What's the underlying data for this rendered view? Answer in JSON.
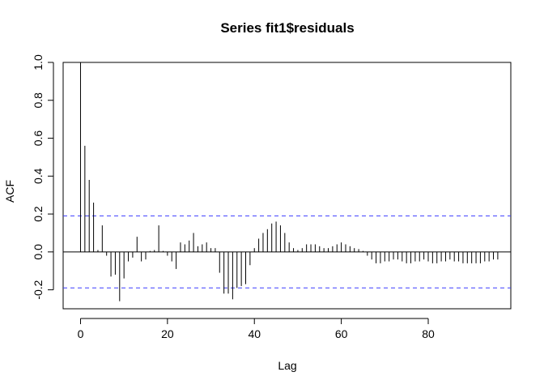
{
  "chart_data": {
    "type": "bar",
    "title": "Series  fit1$residuals",
    "xlabel": "Lag",
    "ylabel": "ACF",
    "xlim": [
      -4,
      99
    ],
    "ylim": [
      -0.3,
      1.0
    ],
    "x_ticks": [
      0,
      20,
      40,
      60,
      80
    ],
    "y_ticks": [
      -0.2,
      0.0,
      0.2,
      0.4,
      0.6,
      0.8,
      1.0
    ],
    "x_tick_labels": [
      "0",
      "20",
      "40",
      "60",
      "80"
    ],
    "y_tick_labels": [
      "-0.2",
      "0.0",
      "0.2",
      "0.4",
      "0.6",
      "0.8",
      "1.0"
    ],
    "confidence_bound": 0.19,
    "lags": [
      0,
      1,
      2,
      3,
      4,
      5,
      6,
      7,
      8,
      9,
      10,
      11,
      12,
      13,
      14,
      15,
      16,
      17,
      18,
      19,
      20,
      21,
      22,
      23,
      24,
      25,
      26,
      27,
      28,
      29,
      30,
      31,
      32,
      33,
      34,
      35,
      36,
      37,
      38,
      39,
      40,
      41,
      42,
      43,
      44,
      45,
      46,
      47,
      48,
      49,
      50,
      51,
      52,
      53,
      54,
      55,
      56,
      57,
      58,
      59,
      60,
      61,
      62,
      63,
      64,
      65,
      66,
      67,
      68,
      69,
      70,
      71,
      72,
      73,
      74,
      75,
      76,
      77,
      78,
      79,
      80,
      81,
      82,
      83,
      84,
      85,
      86,
      87,
      88,
      89,
      90,
      91,
      92,
      93,
      94,
      95,
      96
    ],
    "values": [
      1.0,
      0.56,
      0.38,
      0.26,
      0.01,
      0.14,
      -0.02,
      -0.13,
      -0.12,
      -0.26,
      -0.14,
      -0.05,
      -0.03,
      0.08,
      -0.05,
      -0.04,
      0.005,
      0.01,
      0.14,
      0.005,
      -0.02,
      -0.05,
      -0.09,
      0.05,
      0.04,
      0.06,
      0.1,
      0.03,
      0.04,
      0.05,
      0.02,
      0.02,
      -0.11,
      -0.22,
      -0.22,
      -0.25,
      -0.19,
      -0.18,
      -0.17,
      -0.07,
      0.02,
      0.07,
      0.1,
      0.12,
      0.15,
      0.16,
      0.14,
      0.1,
      0.05,
      0.02,
      0.01,
      0.02,
      0.04,
      0.04,
      0.04,
      0.03,
      0.02,
      0.02,
      0.03,
      0.04,
      0.05,
      0.04,
      0.03,
      0.02,
      0.015,
      0.005,
      -0.02,
      -0.04,
      -0.06,
      -0.06,
      -0.05,
      -0.05,
      -0.04,
      -0.04,
      -0.05,
      -0.06,
      -0.06,
      -0.05,
      -0.05,
      -0.04,
      -0.05,
      -0.06,
      -0.06,
      -0.05,
      -0.05,
      -0.04,
      -0.05,
      -0.05,
      -0.06,
      -0.06,
      -0.06,
      -0.06,
      -0.06,
      -0.05,
      -0.05,
      -0.04,
      -0.04
    ],
    "colors": {
      "spike": "#000000",
      "bound": "#3b3bff",
      "zero_line": "#000000"
    },
    "grid": false,
    "legend": "none"
  }
}
